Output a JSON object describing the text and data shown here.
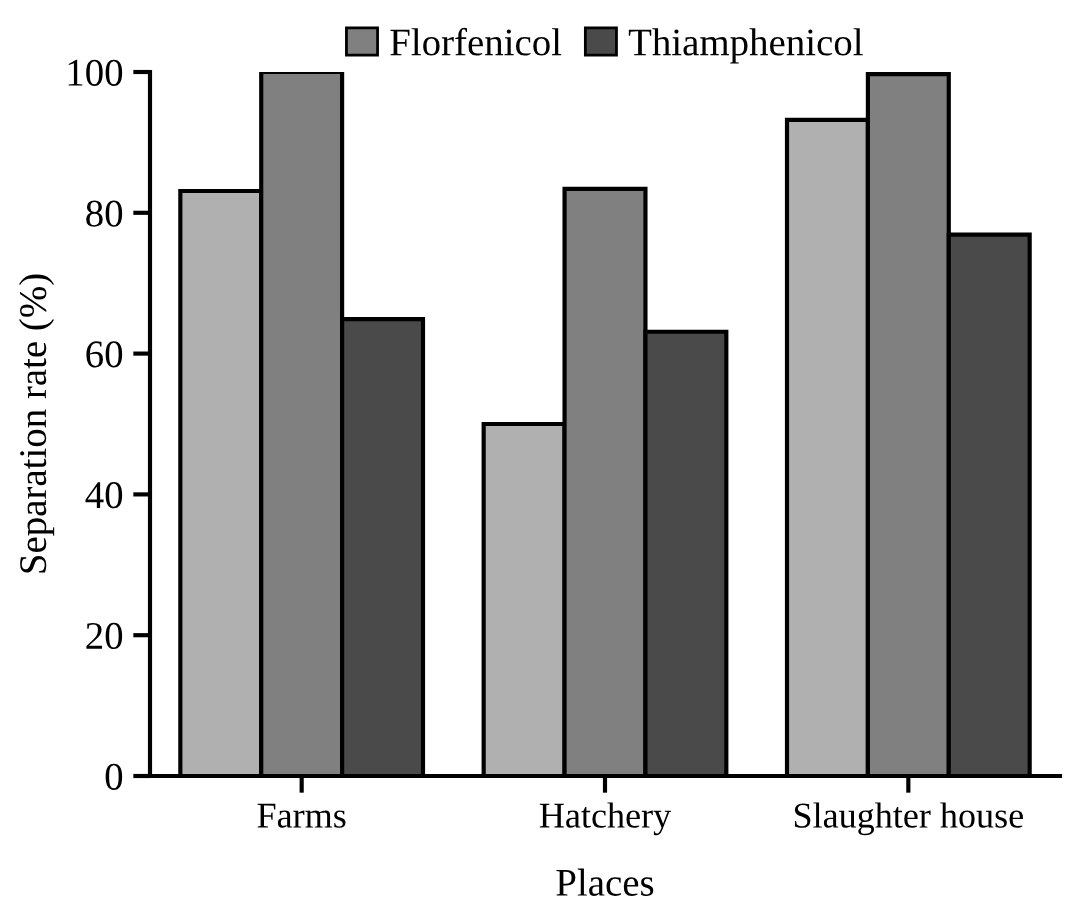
{
  "chart_data": {
    "type": "bar",
    "xlabel": "Places",
    "ylabel": "Separation rate (%)",
    "categories": [
      "Farms",
      "Hatchery",
      "Slaughter house"
    ],
    "series": [
      {
        "color": "#b0b0b0",
        "values": [
          83.1,
          50,
          93.2
        ]
      },
      {
        "name": "Florfenicol",
        "color": "#808080",
        "values": [
          100,
          83.4,
          99.7
        ]
      },
      {
        "name": "Thiamphenicol",
        "color": "#4a4a4a",
        "values": [
          64.9,
          63.1,
          76.9
        ]
      }
    ],
    "ylim": [
      0,
      100
    ],
    "yticks": [
      0,
      20,
      40,
      60,
      80,
      100
    ],
    "grid": false,
    "legend": "top"
  }
}
